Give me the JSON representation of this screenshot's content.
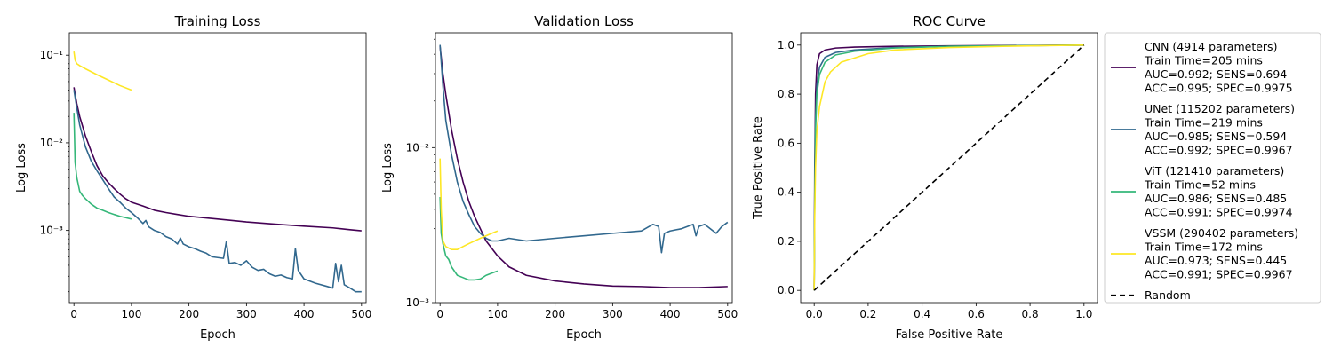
{
  "chart_data": [
    {
      "type": "line",
      "title": "Training Loss",
      "xlabel": "Epoch",
      "ylabel": "Log Loss",
      "yscale": "log",
      "xlim": [
        -8,
        508
      ],
      "ylim": [
        0.00015,
        0.18
      ],
      "xticks": [
        0,
        100,
        200,
        300,
        400,
        500
      ],
      "xtick_labels": [
        "0",
        "100",
        "200",
        "300",
        "400",
        "500"
      ],
      "yticks": [
        0.001,
        0.01,
        0.1
      ],
      "ytick_labels": [
        "10⁻³",
        "10⁻²",
        "10⁻¹"
      ],
      "series": [
        {
          "name": "CNN",
          "color": "#440154",
          "x": [
            0,
            5,
            10,
            20,
            30,
            40,
            50,
            60,
            70,
            80,
            90,
            100,
            120,
            140,
            160,
            180,
            200,
            250,
            300,
            350,
            400,
            450,
            480,
            500
          ],
          "y": [
            0.043,
            0.028,
            0.02,
            0.012,
            0.008,
            0.0055,
            0.0042,
            0.0035,
            0.003,
            0.0026,
            0.0023,
            0.0021,
            0.0019,
            0.0017,
            0.0016,
            0.00152,
            0.00145,
            0.00135,
            0.00125,
            0.00118,
            0.00112,
            0.00107,
            0.00102,
            0.00099
          ]
        },
        {
          "name": "UNet",
          "color": "#31688e",
          "x": [
            0,
            5,
            10,
            20,
            30,
            40,
            50,
            60,
            70,
            80,
            90,
            100,
            110,
            120,
            125,
            130,
            140,
            150,
            160,
            170,
            180,
            185,
            190,
            200,
            210,
            220,
            230,
            240,
            260,
            265,
            270,
            280,
            290,
            300,
            310,
            320,
            330,
            340,
            350,
            360,
            370,
            380,
            385,
            390,
            400,
            420,
            440,
            450,
            455,
            460,
            465,
            470,
            480,
            490,
            500
          ],
          "y": [
            0.04,
            0.025,
            0.016,
            0.009,
            0.0062,
            0.0048,
            0.0038,
            0.003,
            0.0024,
            0.0021,
            0.0018,
            0.0016,
            0.0014,
            0.0012,
            0.0013,
            0.0011,
            0.001,
            0.00095,
            0.00085,
            0.0008,
            0.0007,
            0.00082,
            0.0007,
            0.00065,
            0.00062,
            0.00058,
            0.00055,
            0.0005,
            0.00048,
            0.00075,
            0.00042,
            0.00043,
            0.0004,
            0.00045,
            0.00038,
            0.00035,
            0.00036,
            0.00032,
            0.0003,
            0.00031,
            0.00029,
            0.00028,
            0.00062,
            0.00035,
            0.00028,
            0.00025,
            0.00023,
            0.00022,
            0.00042,
            0.00026,
            0.0004,
            0.00024,
            0.00022,
            0.0002,
            0.0002
          ]
        },
        {
          "name": "ViT",
          "color": "#35b779",
          "x": [
            0,
            1,
            2,
            5,
            10,
            15,
            20,
            30,
            40,
            50,
            60,
            70,
            80,
            90,
            100
          ],
          "y": [
            0.022,
            0.012,
            0.006,
            0.004,
            0.0028,
            0.0025,
            0.0023,
            0.002,
            0.0018,
            0.0017,
            0.0016,
            0.00152,
            0.00145,
            0.0014,
            0.00135
          ]
        },
        {
          "name": "VSSM",
          "color": "#fde725",
          "x": [
            0,
            2,
            5,
            10,
            20,
            40,
            60,
            80,
            100
          ],
          "y": [
            0.11,
            0.088,
            0.08,
            0.076,
            0.07,
            0.06,
            0.052,
            0.045,
            0.04
          ]
        }
      ]
    },
    {
      "type": "line",
      "title": "Validation Loss",
      "xlabel": "Epoch",
      "ylabel": "Log Loss",
      "yscale": "log",
      "xlim": [
        -8,
        508
      ],
      "ylim": [
        0.001,
        0.055
      ],
      "xticks": [
        0,
        100,
        200,
        300,
        400,
        500
      ],
      "xtick_labels": [
        "0",
        "100",
        "200",
        "300",
        "400",
        "500"
      ],
      "yticks": [
        0.001,
        0.01
      ],
      "ytick_labels": [
        "10⁻³",
        "10⁻²"
      ],
      "series": [
        {
          "name": "CNN",
          "color": "#440154",
          "x": [
            0,
            5,
            10,
            20,
            30,
            40,
            50,
            60,
            70,
            80,
            100,
            120,
            150,
            200,
            250,
            300,
            350,
            400,
            450,
            500
          ],
          "y": [
            0.045,
            0.03,
            0.022,
            0.013,
            0.0085,
            0.006,
            0.0045,
            0.0036,
            0.003,
            0.0025,
            0.002,
            0.0017,
            0.0015,
            0.00138,
            0.00132,
            0.00128,
            0.00127,
            0.00125,
            0.00125,
            0.00127
          ]
        },
        {
          "name": "UNet",
          "color": "#31688e",
          "x": [
            0,
            5,
            10,
            20,
            30,
            40,
            50,
            60,
            70,
            80,
            90,
            100,
            120,
            150,
            200,
            250,
            300,
            350,
            370,
            380,
            385,
            390,
            400,
            420,
            440,
            445,
            450,
            460,
            480,
            490,
            500
          ],
          "y": [
            0.046,
            0.025,
            0.015,
            0.009,
            0.006,
            0.0045,
            0.0037,
            0.0031,
            0.0028,
            0.0026,
            0.0025,
            0.0025,
            0.0026,
            0.0025,
            0.0026,
            0.0027,
            0.0028,
            0.0029,
            0.0032,
            0.0031,
            0.0021,
            0.0028,
            0.0029,
            0.003,
            0.0032,
            0.0027,
            0.0031,
            0.0032,
            0.0028,
            0.0031,
            0.0033
          ]
        },
        {
          "name": "ViT",
          "color": "#35b779",
          "x": [
            0,
            2,
            5,
            10,
            15,
            20,
            30,
            40,
            50,
            60,
            70,
            80,
            90,
            100
          ],
          "y": [
            0.0048,
            0.0028,
            0.0024,
            0.002,
            0.0019,
            0.0017,
            0.0015,
            0.00145,
            0.0014,
            0.0014,
            0.00142,
            0.0015,
            0.00155,
            0.0016
          ]
        },
        {
          "name": "VSSM",
          "color": "#fde725",
          "x": [
            0,
            2,
            5,
            10,
            20,
            30,
            40,
            50,
            60,
            70,
            80,
            90,
            100
          ],
          "y": [
            0.0085,
            0.004,
            0.0025,
            0.0023,
            0.0022,
            0.0022,
            0.0023,
            0.0024,
            0.0025,
            0.0026,
            0.0027,
            0.0028,
            0.0029
          ]
        }
      ]
    },
    {
      "type": "line",
      "title": "ROC Curve",
      "xlabel": "False Positive Rate",
      "ylabel": "True Positive Rate",
      "yscale": "linear",
      "xlim": [
        -0.05,
        1.05
      ],
      "ylim": [
        -0.05,
        1.05
      ],
      "xticks": [
        0,
        0.2,
        0.4,
        0.6,
        0.8,
        1.0
      ],
      "xtick_labels": [
        "0.0",
        "0.2",
        "0.4",
        "0.6",
        "0.8",
        "1.0"
      ],
      "yticks": [
        0,
        0.2,
        0.4,
        0.6,
        0.8,
        1.0
      ],
      "ytick_labels": [
        "0.0",
        "0.2",
        "0.4",
        "0.6",
        "0.8",
        "1.0"
      ],
      "series": [
        {
          "name": "CNN",
          "color": "#440154",
          "x": [
            0,
            0.002,
            0.005,
            0.01,
            0.02,
            0.04,
            0.08,
            0.15,
            0.3,
            0.5,
            1.0
          ],
          "y": [
            0,
            0.5,
            0.8,
            0.92,
            0.965,
            0.98,
            0.988,
            0.992,
            0.995,
            0.997,
            1.0
          ]
        },
        {
          "name": "UNet",
          "color": "#31688e",
          "x": [
            0,
            0.002,
            0.005,
            0.01,
            0.02,
            0.04,
            0.08,
            0.15,
            0.3,
            0.5,
            1.0
          ],
          "y": [
            0,
            0.4,
            0.7,
            0.84,
            0.91,
            0.95,
            0.97,
            0.98,
            0.99,
            0.995,
            1.0
          ]
        },
        {
          "name": "ViT",
          "color": "#35b779",
          "x": [
            0,
            0.002,
            0.005,
            0.01,
            0.02,
            0.04,
            0.08,
            0.15,
            0.3,
            0.5,
            1.0
          ],
          "y": [
            0,
            0.35,
            0.65,
            0.8,
            0.88,
            0.93,
            0.96,
            0.975,
            0.988,
            0.995,
            1.0
          ]
        },
        {
          "name": "VSSM",
          "color": "#fde725",
          "x": [
            0,
            0.002,
            0.005,
            0.01,
            0.02,
            0.04,
            0.06,
            0.1,
            0.2,
            0.3,
            0.5,
            0.7,
            1.0
          ],
          "y": [
            0,
            0.3,
            0.5,
            0.65,
            0.75,
            0.85,
            0.89,
            0.93,
            0.965,
            0.98,
            0.99,
            0.995,
            1.0
          ]
        },
        {
          "name": "Random",
          "color": "#000000",
          "dashed": true,
          "x": [
            0,
            1
          ],
          "y": [
            0,
            1
          ]
        }
      ]
    }
  ],
  "legend": {
    "entries": [
      {
        "name": "CNN",
        "color": "#440154",
        "lines": [
          "CNN (4914 parameters)",
          "Train Time=205 mins",
          "AUC=0.992; SENS=0.694",
          "ACC=0.995; SPEC=0.9975"
        ]
      },
      {
        "name": "UNet",
        "color": "#31688e",
        "lines": [
          "UNet (115202 parameters)",
          "Train Time=219 mins",
          "AUC=0.985; SENS=0.594",
          "ACC=0.992; SPEC=0.9967"
        ]
      },
      {
        "name": "ViT",
        "color": "#35b779",
        "lines": [
          "ViT (121410 parameters)",
          "Train Time=52 mins",
          "AUC=0.986; SENS=0.485",
          "ACC=0.991; SPEC=0.9974"
        ]
      },
      {
        "name": "VSSM",
        "color": "#fde725",
        "lines": [
          "VSSM (290402 parameters)",
          "Train Time=172 mins",
          "AUC=0.973; SENS=0.445",
          "ACC=0.991; SPEC=0.9967"
        ]
      },
      {
        "name": "Random",
        "color": "#000000",
        "dashed": true,
        "lines": [
          "Random"
        ]
      }
    ]
  }
}
